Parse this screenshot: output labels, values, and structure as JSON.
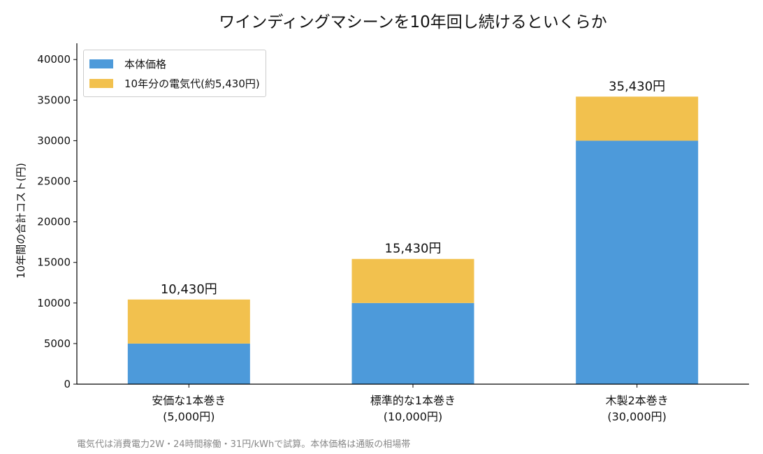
{
  "title": "ワインディングマシーンを10年回し続けるといくらか",
  "footnote": "電気代は消費電力2W・24時間稼働・31円/kWhで試算。本体価格は通販の相場帯",
  "colors": {
    "base": "#4d9ada",
    "electric": "#f2c14e",
    "axis": "#000000"
  },
  "chart_data": {
    "type": "bar",
    "stacked": true,
    "categories": [
      {
        "line1": "安価な1本巻き",
        "line2": "(5,000円)"
      },
      {
        "line1": "標準的な1本巻き",
        "line2": "(10,000円)"
      },
      {
        "line1": "木製2本巻き",
        "line2": "(30,000円)"
      }
    ],
    "series": [
      {
        "name": "本体価格",
        "values": [
          5000,
          10000,
          30000
        ]
      },
      {
        "name": "10年分の電気代(約5,430円)",
        "values": [
          5430,
          5430,
          5430
        ]
      }
    ],
    "totals": [
      "10,430円",
      "15,430円",
      "35,430円"
    ],
    "ylabel": "10年間の合計コスト(円)",
    "xlabel": "",
    "ylim": [
      0,
      42000
    ],
    "yticks": [
      0,
      5000,
      10000,
      15000,
      20000,
      25000,
      30000,
      35000,
      40000
    ],
    "grid": false,
    "legend_position": "top-left"
  }
}
